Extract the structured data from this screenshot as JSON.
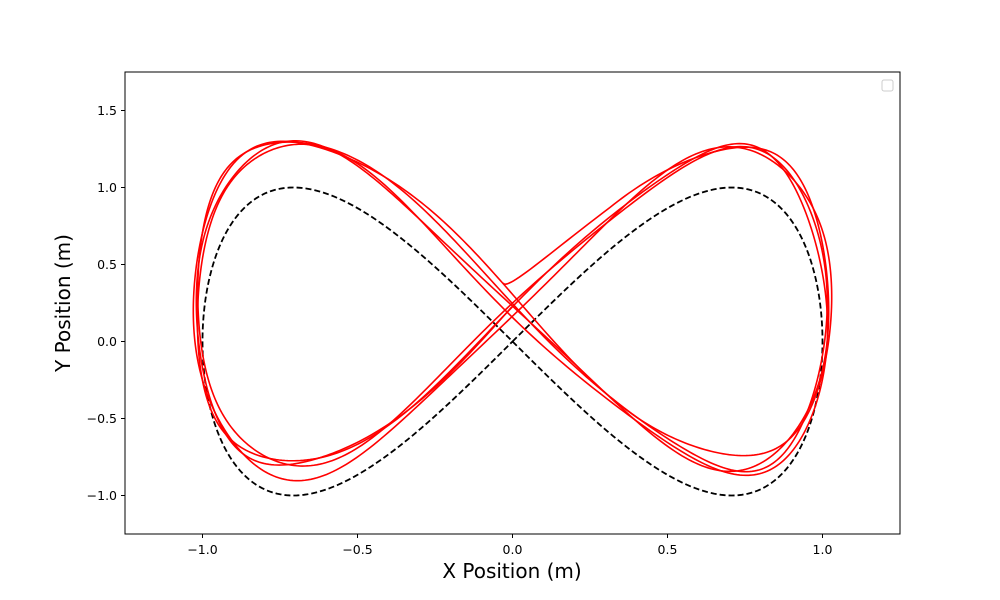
{
  "chart_data": {
    "type": "line",
    "xlabel": "X Position (m)",
    "ylabel": "Y Position (m)",
    "xlim": [
      -1.25,
      1.25
    ],
    "ylim": [
      -1.25,
      1.75
    ],
    "x_ticks": [
      -1.0,
      -0.5,
      0.0,
      0.5,
      1.0
    ],
    "x_tick_labels": [
      "−1.0",
      "−0.5",
      "0.0",
      "0.5",
      "1.0"
    ],
    "y_ticks": [
      -1.0,
      -0.5,
      0.0,
      0.5,
      1.0,
      1.5
    ],
    "y_tick_labels": [
      "−1.0",
      "−0.5",
      "0.0",
      "0.5",
      "1.0",
      "1.5"
    ],
    "grid": false,
    "legend": {
      "placement": "upper-right",
      "entries": []
    },
    "series": [
      {
        "style": "dashed",
        "color": "#000000",
        "curve": "lemniscate of Gerono: x = sin(t), y = sin(t)cos(t)*2",
        "x": [
          0.0,
          0.38,
          0.71,
          0.92,
          1.0,
          0.92,
          0.71,
          0.38,
          0.0,
          -0.38,
          -0.71,
          -0.92,
          -1.0,
          -0.92,
          -0.71,
          -0.38,
          0.0
        ],
        "y": [
          0.0,
          0.71,
          1.0,
          0.71,
          0.0,
          -0.71,
          -1.0,
          -0.71,
          0.0,
          0.71,
          1.0,
          0.71,
          0.0,
          -0.71,
          -1.0,
          -0.71,
          0.0
        ]
      },
      {
        "style": "solid",
        "color": "#ff0000",
        "loops": 4,
        "offset_y": 0.23,
        "scale_x": 1.02,
        "scale_y": 1.05,
        "start": [
          -0.03,
          0.38
        ]
      }
    ]
  }
}
